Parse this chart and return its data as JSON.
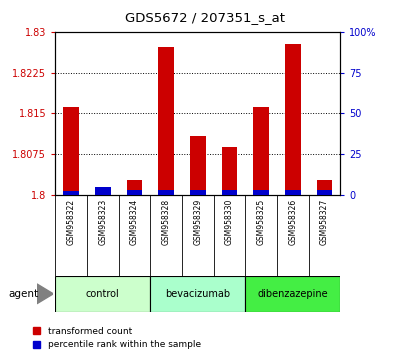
{
  "title": "GDS5672 / 207351_s_at",
  "samples": [
    "GSM958322",
    "GSM958323",
    "GSM958324",
    "GSM958328",
    "GSM958329",
    "GSM958330",
    "GSM958325",
    "GSM958326",
    "GSM958327"
  ],
  "red_values": [
    1.8162,
    1.8002,
    1.8028,
    1.8272,
    1.8108,
    1.8088,
    1.8162,
    1.8278,
    1.8028
  ],
  "blue_values": [
    2,
    5,
    3,
    3,
    3,
    3,
    3,
    3,
    3
  ],
  "y_min": 1.8,
  "y_max": 1.83,
  "y_ticks": [
    1.8,
    1.8075,
    1.815,
    1.8225,
    1.83
  ],
  "y_tick_labels": [
    "1.8",
    "1.8075",
    "1.815",
    "1.8225",
    "1.83"
  ],
  "y2_ticks": [
    0,
    25,
    50,
    75,
    100
  ],
  "y2_tick_labels": [
    "0",
    "25",
    "50",
    "75",
    "100%"
  ],
  "groups": [
    {
      "label": "control",
      "indices": [
        0,
        1,
        2
      ],
      "color": "#ccffcc"
    },
    {
      "label": "bevacizumab",
      "indices": [
        3,
        4,
        5
      ],
      "color": "#aaffcc"
    },
    {
      "label": "dibenzazepine",
      "indices": [
        6,
        7,
        8
      ],
      "color": "#44ee44"
    }
  ],
  "agent_label": "agent",
  "legend_red_label": "transformed count",
  "legend_blue_label": "percentile rank within the sample",
  "red_color": "#cc0000",
  "blue_color": "#0000cc",
  "left_axis_color": "#cc0000",
  "right_axis_color": "#0000cc",
  "sample_box_color": "#cccccc",
  "fig_width": 4.1,
  "fig_height": 3.54,
  "dpi": 100
}
